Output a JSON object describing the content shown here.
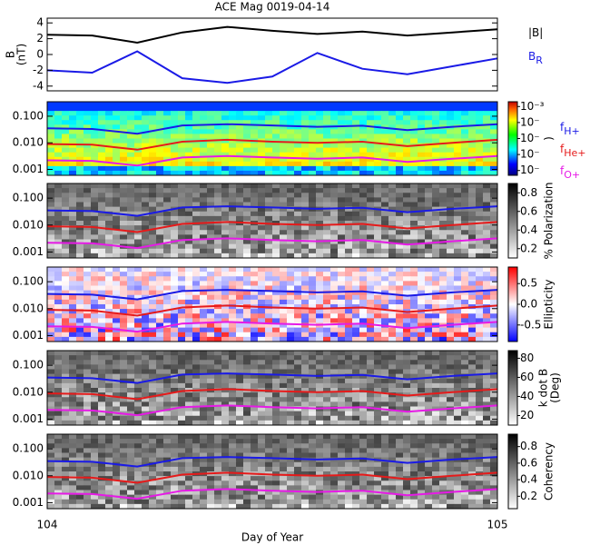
{
  "chart_data": [
    {
      "type": "line",
      "title": "ACE Mag 0019-04-14",
      "ylabel": [
        "B",
        "(nT)"
      ],
      "log_y": false,
      "x": [
        104,
        104.1,
        104.2,
        104.3,
        104.4,
        104.5,
        104.6,
        104.7,
        104.8,
        104.9,
        105
      ],
      "xlim": [
        104,
        105
      ],
      "ylim": [
        -4.6,
        4.6
      ],
      "yticks": [
        -4,
        -2,
        0,
        2,
        4
      ],
      "legend": true,
      "series": [
        {
          "name": "|B|",
          "color": "#000000",
          "values": [
            2.5,
            2.4,
            1.5,
            2.8,
            3.5,
            3.0,
            2.6,
            2.9,
            2.4,
            2.8,
            3.2
          ]
        },
        {
          "name": "B",
          "name_sub": "R",
          "color": "#1a1ae6",
          "values": [
            -2.0,
            -2.3,
            0.4,
            -3.0,
            -3.6,
            -2.8,
            0.2,
            -1.8,
            -2.5,
            -1.5,
            -0.5
          ]
        }
      ]
    },
    {
      "type": "line",
      "log_y": true,
      "background": "spectrum",
      "legend": true,
      "x": [
        104,
        104.1,
        104.2,
        104.3,
        104.4,
        104.5,
        104.6,
        104.7,
        104.8,
        104.9,
        105
      ],
      "xlim": [
        104,
        105
      ],
      "ylim": [
        0.0006,
        0.35
      ],
      "yticks": [
        {
          "value": 0.001,
          "label": "0.001"
        },
        {
          "value": 0.01,
          "label": "0.010"
        },
        {
          "value": 0.1,
          "label": "0.100"
        }
      ],
      "colorbar": {
        "scale": "jet",
        "lim": [
          -7.3,
          -2.7
        ],
        "ticks": [
          {
            "value": -3,
            "label": "10⁻³"
          },
          {
            "value": -4,
            "label": "10⁻"
          },
          {
            "value": -5,
            "label": "10⁻"
          },
          {
            "value": -6,
            "label": "10⁻"
          },
          {
            "value": -7,
            "label": "10⁻"
          }
        ],
        "label": ")"
      },
      "series": [
        {
          "name": "f",
          "name_sub": "H+",
          "color": "#1a1ae6",
          "values": [
            0.035,
            0.033,
            0.022,
            0.045,
            0.05,
            0.045,
            0.04,
            0.044,
            0.03,
            0.04,
            0.05
          ]
        },
        {
          "name": "f",
          "name_sub": "He+",
          "color": "#e61a1a",
          "values": [
            0.009,
            0.0085,
            0.0055,
            0.011,
            0.013,
            0.011,
            0.01,
            0.011,
            0.0075,
            0.01,
            0.013
          ]
        },
        {
          "name": "f",
          "name_sub": "O+",
          "color": "#e61ae6",
          "values": [
            0.0022,
            0.0021,
            0.0014,
            0.0028,
            0.0032,
            0.0028,
            0.0025,
            0.0028,
            0.0019,
            0.0025,
            0.0032
          ]
        }
      ]
    },
    {
      "type": "line",
      "log_y": true,
      "background": "gray",
      "x": [
        104,
        104.1,
        104.2,
        104.3,
        104.4,
        104.5,
        104.6,
        104.7,
        104.8,
        104.9,
        105
      ],
      "xlim": [
        104,
        105
      ],
      "ylim": [
        0.0006,
        0.35
      ],
      "yticks": [
        {
          "value": 0.001,
          "label": "0.001"
        },
        {
          "value": 0.01,
          "label": "0.010"
        },
        {
          "value": 0.1,
          "label": "0.100"
        }
      ],
      "colorbar": {
        "scale": "gray",
        "lim": [
          0.1,
          0.9
        ],
        "ticks": [
          0.2,
          0.4,
          0.6,
          0.8
        ],
        "label": "% Polarization"
      },
      "series": [
        {
          "color": "#1a1ae6",
          "values": [
            0.035,
            0.033,
            0.022,
            0.045,
            0.05,
            0.045,
            0.04,
            0.044,
            0.03,
            0.04,
            0.05
          ]
        },
        {
          "color": "#e61a1a",
          "values": [
            0.009,
            0.0085,
            0.0055,
            0.011,
            0.013,
            0.011,
            0.01,
            0.011,
            0.0075,
            0.01,
            0.013
          ]
        },
        {
          "color": "#e61ae6",
          "values": [
            0.0022,
            0.0021,
            0.0014,
            0.0028,
            0.0032,
            0.0028,
            0.0025,
            0.0028,
            0.0019,
            0.0025,
            0.0032
          ]
        }
      ]
    },
    {
      "type": "line",
      "log_y": true,
      "background": "diverging",
      "x": [
        104,
        104.1,
        104.2,
        104.3,
        104.4,
        104.5,
        104.6,
        104.7,
        104.8,
        104.9,
        105
      ],
      "xlim": [
        104,
        105
      ],
      "ylim": [
        0.0006,
        0.35
      ],
      "yticks": [
        {
          "value": 0.001,
          "label": "0.001"
        },
        {
          "value": 0.01,
          "label": "0.010"
        },
        {
          "value": 0.1,
          "label": "0.100"
        }
      ],
      "colorbar": {
        "scale": "diverging",
        "lim": [
          -0.9,
          0.9
        ],
        "ticks": [
          -0.5,
          {
            "value": 0,
            "label": "0.0"
          },
          0.5
        ],
        "label": "Ellipticity"
      },
      "series": [
        {
          "color": "#1a1ae6",
          "values": [
            0.035,
            0.033,
            0.022,
            0.045,
            0.05,
            0.045,
            0.04,
            0.044,
            0.03,
            0.04,
            0.05
          ]
        },
        {
          "color": "#e61a1a",
          "values": [
            0.009,
            0.0085,
            0.0055,
            0.011,
            0.013,
            0.011,
            0.01,
            0.011,
            0.0075,
            0.01,
            0.013
          ]
        },
        {
          "color": "#e61ae6",
          "values": [
            0.0022,
            0.0021,
            0.0014,
            0.0028,
            0.0032,
            0.0028,
            0.0025,
            0.0028,
            0.0019,
            0.0025,
            0.0032
          ]
        }
      ]
    },
    {
      "type": "line",
      "log_y": true,
      "background": "gray",
      "x": [
        104,
        104.1,
        104.2,
        104.3,
        104.4,
        104.5,
        104.6,
        104.7,
        104.8,
        104.9,
        105
      ],
      "xlim": [
        104,
        105
      ],
      "ylim": [
        0.0006,
        0.35
      ],
      "yticks": [
        {
          "value": 0.001,
          "label": "0.001"
        },
        {
          "value": 0.01,
          "label": "0.010"
        },
        {
          "value": 0.1,
          "label": "0.100"
        }
      ],
      "colorbar": {
        "scale": "gray",
        "lim": [
          10,
          88
        ],
        "ticks": [
          20,
          40,
          60,
          80
        ],
        "label": [
          "k dot B",
          "(Deg)"
        ]
      },
      "series": [
        {
          "color": "#1a1ae6",
          "values": [
            0.035,
            0.033,
            0.022,
            0.045,
            0.05,
            0.045,
            0.04,
            0.044,
            0.03,
            0.04,
            0.05
          ]
        },
        {
          "color": "#e61a1a",
          "values": [
            0.009,
            0.0085,
            0.0055,
            0.011,
            0.013,
            0.011,
            0.01,
            0.011,
            0.0075,
            0.01,
            0.013
          ]
        },
        {
          "color": "#e61ae6",
          "values": [
            0.0022,
            0.0021,
            0.0014,
            0.0028,
            0.0032,
            0.0028,
            0.0025,
            0.0028,
            0.0019,
            0.0025,
            0.0032
          ]
        }
      ]
    },
    {
      "type": "line",
      "log_y": true,
      "background": "gray",
      "x": [
        104,
        104.1,
        104.2,
        104.3,
        104.4,
        104.5,
        104.6,
        104.7,
        104.8,
        104.9,
        105
      ],
      "xlim": [
        104,
        105
      ],
      "xticks": [
        104,
        105
      ],
      "xlabel": "Day of Year",
      "ylim": [
        0.0006,
        0.35
      ],
      "yticks": [
        {
          "value": 0.001,
          "label": "0.001"
        },
        {
          "value": 0.01,
          "label": "0.010"
        },
        {
          "value": 0.1,
          "label": "0.100"
        }
      ],
      "colorbar": {
        "scale": "gray",
        "lim": [
          0.05,
          0.95
        ],
        "ticks": [
          0.2,
          0.4,
          0.6,
          0.8
        ],
        "label": "Coherency"
      },
      "series": [
        {
          "color": "#1a1ae6",
          "values": [
            0.035,
            0.033,
            0.022,
            0.045,
            0.05,
            0.045,
            0.04,
            0.044,
            0.03,
            0.04,
            0.05
          ]
        },
        {
          "color": "#e61a1a",
          "values": [
            0.009,
            0.0085,
            0.0055,
            0.011,
            0.013,
            0.011,
            0.01,
            0.011,
            0.0075,
            0.01,
            0.013
          ]
        },
        {
          "color": "#e61ae6",
          "values": [
            0.0022,
            0.0021,
            0.0014,
            0.0028,
            0.0032,
            0.0028,
            0.0025,
            0.0028,
            0.0019,
            0.0025,
            0.0032
          ]
        }
      ]
    }
  ]
}
